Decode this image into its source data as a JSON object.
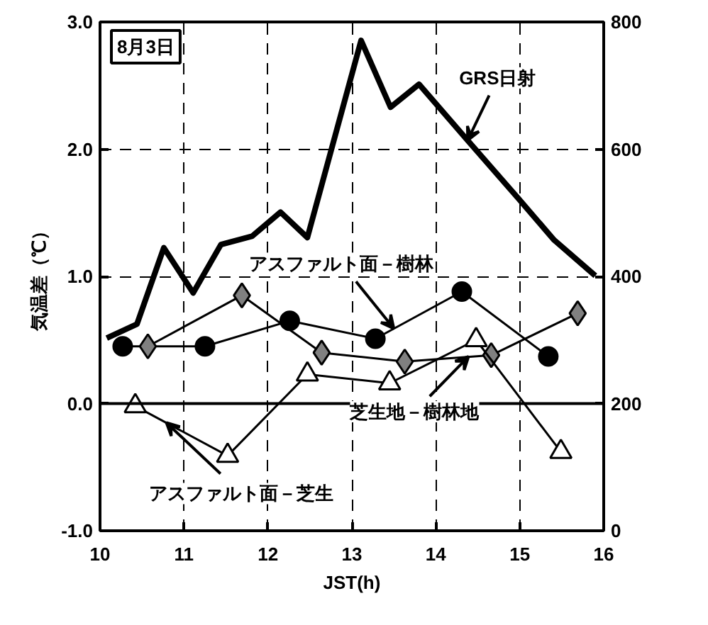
{
  "chart_data": {
    "type": "line",
    "xlabel": "JST(h)",
    "ylabel": "気温差（℃）",
    "xlim": [
      10,
      16
    ],
    "xticks": [
      10,
      11,
      12,
      13,
      14,
      15,
      16
    ],
    "ylim": [
      -1,
      3
    ],
    "yticks": [
      {
        "value": -1,
        "label": "-1.0"
      },
      {
        "value": 0,
        "label": "0.0"
      },
      {
        "value": 1,
        "label": "1.0"
      },
      {
        "value": 2,
        "label": "2.0"
      },
      {
        "value": 3,
        "label": "3.0"
      }
    ],
    "y2lim": [
      0,
      800
    ],
    "y2ticks": [
      0,
      200,
      400,
      600,
      800
    ],
    "grid": true,
    "line_style": "solid",
    "ref_lines": [
      {
        "axis": "y",
        "value": 0,
        "line_style": "solid",
        "color": "#000000"
      }
    ],
    "series": [
      {
        "color": "#000000",
        "axis": "y2",
        "marker": "none",
        "x": [
          10.08,
          10.44,
          10.76,
          11.11,
          11.44,
          11.81,
          12.15,
          12.47,
          13.11,
          13.46,
          13.8,
          14.39,
          14.98,
          15.41,
          15.9
        ],
        "values": [
          303,
          325,
          445,
          374,
          450,
          463,
          501,
          461,
          771,
          666,
          702,
          612,
          523,
          457,
          401
        ]
      },
      {
        "color": "#000000",
        "marker": "circle",
        "x": [
          10.27,
          11.25,
          12.26,
          13.28,
          14.31,
          15.34
        ],
        "values": [
          0.45,
          0.45,
          0.65,
          0.51,
          0.88,
          0.37
        ]
      },
      {
        "color": "#808080",
        "marker": "diamond",
        "x": [
          10.57,
          11.69,
          12.64,
          13.63,
          14.66,
          15.69
        ],
        "values": [
          0.45,
          0.85,
          0.4,
          0.33,
          0.38,
          0.71
        ]
      },
      {
        "color": "#ffffff",
        "marker": "triangle",
        "x": [
          10.42,
          11.52,
          12.47,
          13.45,
          14.48,
          15.49
        ],
        "values": [
          -0.02,
          -0.41,
          0.23,
          0.16,
          0.5,
          -0.38
        ]
      }
    ],
    "annotations": [
      "8月3日",
      {
        "text": "GRS日射",
        "x": 14.38,
        "y": 2.07
      },
      {
        "text": "アスファルト面－樹林",
        "x": 13.5,
        "y": 0.59
      },
      {
        "text": "芝生地－樹林地",
        "x": 14.39,
        "y": 0.37
      },
      {
        "text": "アスファルト面－芝生",
        "x": 10.79,
        "y": -0.15
      }
    ]
  }
}
